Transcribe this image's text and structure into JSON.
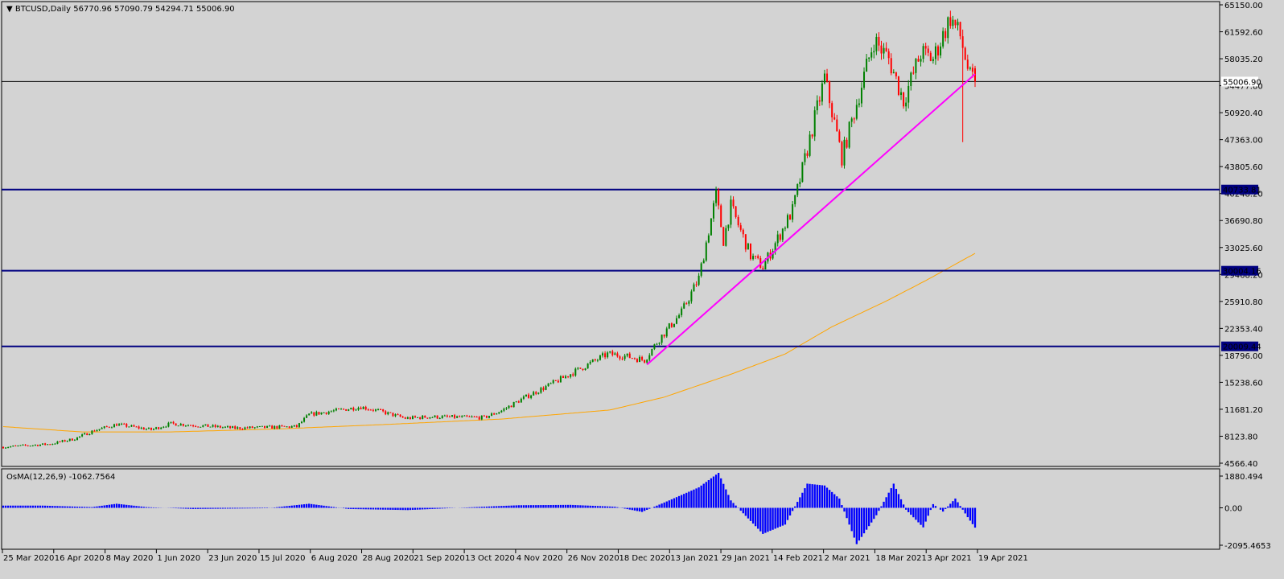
{
  "header": {
    "symbol_line": "BTCUSD,Daily  56770.96 57090.79 54294.71 55006.90",
    "osma_line": "OsMA(12,26,9) -1062.7564"
  },
  "colors": {
    "background": "#d3d3d3",
    "bull": "#008000",
    "bear": "#ff0000",
    "hline": "#000080",
    "trendline": "#ff00ff",
    "ma": "#ffa500",
    "osma": "#0000ff",
    "price_line": "#000000"
  },
  "chart_data": [
    {
      "type": "candlestick",
      "title": "BTCUSD,Daily",
      "ohlc_last": {
        "open": 56770.96,
        "high": 57090.79,
        "low": 54294.71,
        "close": 55006.9
      },
      "ylim": [
        4566.4,
        65150.0
      ],
      "y_ticks": [
        "65150.00",
        "61592.60",
        "58035.20",
        "54477.80",
        "50920.40",
        "47363.00",
        "43805.60",
        "40248.20",
        "36690.80",
        "33025.60",
        "29468.20",
        "25910.80",
        "22353.40",
        "18796.00",
        "15238.60",
        "11681.20",
        "8123.80",
        "4566.40"
      ],
      "x_tick_labels": [
        "25 Mar 2020",
        "16 Apr 2020",
        "8 May 2020",
        "1 Jun 2020",
        "23 Jun 2020",
        "15 Jul 2020",
        "6 Aug 2020",
        "28 Aug 2020",
        "21 Sep 2020",
        "13 Oct 2020",
        "4 Nov 2020",
        "26 Nov 2020",
        "18 Dec 2020",
        "13 Jan 2021",
        "29 Jan 2021",
        "14 Feb 2021",
        "2 Mar 2021",
        "18 Mar 2021",
        "3 Apr 2021",
        "19 Apr 2021"
      ],
      "horizontal_levels": [
        {
          "value": 55006.9,
          "label": "55006.90",
          "kind": "current-price"
        },
        {
          "value": 40733.81,
          "label": "40733.81",
          "kind": "level"
        },
        {
          "value": 30004.16,
          "label": "30004.16",
          "kind": "level"
        },
        {
          "value": 20009.44,
          "label": "20009.44",
          "kind": "level"
        }
      ],
      "trendline": {
        "from": {
          "date": "2020-12-11",
          "value": 17600
        },
        "to": {
          "date": "2021-04-23",
          "value": 56000
        }
      },
      "moving_average_anchors": [
        {
          "date": "2020-03-25",
          "value": 9400
        },
        {
          "date": "2020-04-26",
          "value": 8700
        },
        {
          "date": "2020-06-01",
          "value": 8700
        },
        {
          "date": "2020-07-15",
          "value": 9100
        },
        {
          "date": "2020-08-28",
          "value": 9700
        },
        {
          "date": "2020-10-13",
          "value": 10400
        },
        {
          "date": "2020-11-26",
          "value": 11600
        },
        {
          "date": "2020-12-18",
          "value": 13300
        },
        {
          "date": "2021-01-13",
          "value": 16200
        },
        {
          "date": "2021-02-05",
          "value": 19000
        },
        {
          "date": "2021-02-24",
          "value": 22600
        },
        {
          "date": "2021-03-18",
          "value": 26000
        },
        {
          "date": "2021-04-03",
          "value": 28700
        },
        {
          "date": "2021-04-23",
          "value": 32300
        }
      ],
      "price_anchors": [
        {
          "date": "2020-03-25",
          "value": 6700
        },
        {
          "date": "2020-04-13",
          "value": 7100
        },
        {
          "date": "2020-04-23",
          "value": 7800
        },
        {
          "date": "2020-05-01",
          "value": 8900
        },
        {
          "date": "2020-05-10",
          "value": 9700
        },
        {
          "date": "2020-05-24",
          "value": 9000
        },
        {
          "date": "2020-06-01",
          "value": 9800
        },
        {
          "date": "2020-06-27",
          "value": 9200
        },
        {
          "date": "2020-07-22",
          "value": 9400
        },
        {
          "date": "2020-07-27",
          "value": 11000
        },
        {
          "date": "2020-08-17",
          "value": 12000
        },
        {
          "date": "2020-08-24",
          "value": 11500
        },
        {
          "date": "2020-09-04",
          "value": 10500
        },
        {
          "date": "2020-09-14",
          "value": 10700
        },
        {
          "date": "2020-10-06",
          "value": 10600
        },
        {
          "date": "2020-10-13",
          "value": 11500
        },
        {
          "date": "2020-10-21",
          "value": 13000
        },
        {
          "date": "2020-11-05",
          "value": 15500
        },
        {
          "date": "2020-11-25",
          "value": 19000
        },
        {
          "date": "2020-12-01",
          "value": 18800
        },
        {
          "date": "2020-12-10",
          "value": 18200
        },
        {
          "date": "2020-12-16",
          "value": 21000
        },
        {
          "date": "2020-12-25",
          "value": 24500
        },
        {
          "date": "2021-01-01",
          "value": 29000
        },
        {
          "date": "2021-01-08",
          "value": 40000
        },
        {
          "date": "2021-01-11",
          "value": 34000
        },
        {
          "date": "2021-01-14",
          "value": 38500
        },
        {
          "date": "2021-01-22",
          "value": 32000
        },
        {
          "date": "2021-01-27",
          "value": 30500
        },
        {
          "date": "2021-02-08",
          "value": 38000
        },
        {
          "date": "2021-02-21",
          "value": 55500
        },
        {
          "date": "2021-02-28",
          "value": 45000
        },
        {
          "date": "2021-03-13",
          "value": 60500
        },
        {
          "date": "2021-03-19",
          "value": 58000
        },
        {
          "date": "2021-03-25",
          "value": 52500
        },
        {
          "date": "2021-04-01",
          "value": 58800
        },
        {
          "date": "2021-04-06",
          "value": 58000
        },
        {
          "date": "2021-04-13",
          "value": 63500
        },
        {
          "date": "2021-04-17",
          "value": 61000
        },
        {
          "date": "2021-04-21",
          "value": 55500
        },
        {
          "date": "2021-04-23",
          "value": 55006.9
        }
      ],
      "spikes": [
        {
          "date": "2021-04-18",
          "low": 47000
        }
      ]
    },
    {
      "type": "histogram",
      "title": "OsMA(12,26,9)",
      "last_value": -1062.7564,
      "ylim": [
        -2095.4653,
        1880.494
      ],
      "y_ticks": [
        "1880.494",
        "0.00",
        "-2095.4653"
      ],
      "anchors": [
        {
          "date": "2020-03-25",
          "value": 120
        },
        {
          "date": "2020-04-10",
          "value": 120
        },
        {
          "date": "2020-04-30",
          "value": 40
        },
        {
          "date": "2020-05-10",
          "value": 220
        },
        {
          "date": "2020-05-22",
          "value": 40
        },
        {
          "date": "2020-06-10",
          "value": -60
        },
        {
          "date": "2020-07-10",
          "value": -20
        },
        {
          "date": "2020-07-27",
          "value": 220
        },
        {
          "date": "2020-08-12",
          "value": -60
        },
        {
          "date": "2020-09-05",
          "value": -120
        },
        {
          "date": "2020-09-25",
          "value": 0
        },
        {
          "date": "2020-10-20",
          "value": 140
        },
        {
          "date": "2020-11-10",
          "value": 160
        },
        {
          "date": "2020-11-28",
          "value": 60
        },
        {
          "date": "2020-12-09",
          "value": -220
        },
        {
          "date": "2020-12-20",
          "value": 400
        },
        {
          "date": "2021-01-01",
          "value": 1100
        },
        {
          "date": "2021-01-09",
          "value": 1880
        },
        {
          "date": "2021-01-14",
          "value": 400
        },
        {
          "date": "2021-01-27",
          "value": -1400
        },
        {
          "date": "2021-02-05",
          "value": -900
        },
        {
          "date": "2021-02-14",
          "value": 1300
        },
        {
          "date": "2021-02-21",
          "value": 1200
        },
        {
          "date": "2021-02-27",
          "value": 500
        },
        {
          "date": "2021-03-06",
          "value": -1950
        },
        {
          "date": "2021-03-14",
          "value": -400
        },
        {
          "date": "2021-03-21",
          "value": 1300
        },
        {
          "date": "2021-03-26",
          "value": -100
        },
        {
          "date": "2021-04-02",
          "value": -1050
        },
        {
          "date": "2021-04-06",
          "value": 200
        },
        {
          "date": "2021-04-10",
          "value": -200
        },
        {
          "date": "2021-04-15",
          "value": 500
        },
        {
          "date": "2021-04-20",
          "value": -500
        },
        {
          "date": "2021-04-23",
          "value": -1063
        }
      ]
    }
  ]
}
